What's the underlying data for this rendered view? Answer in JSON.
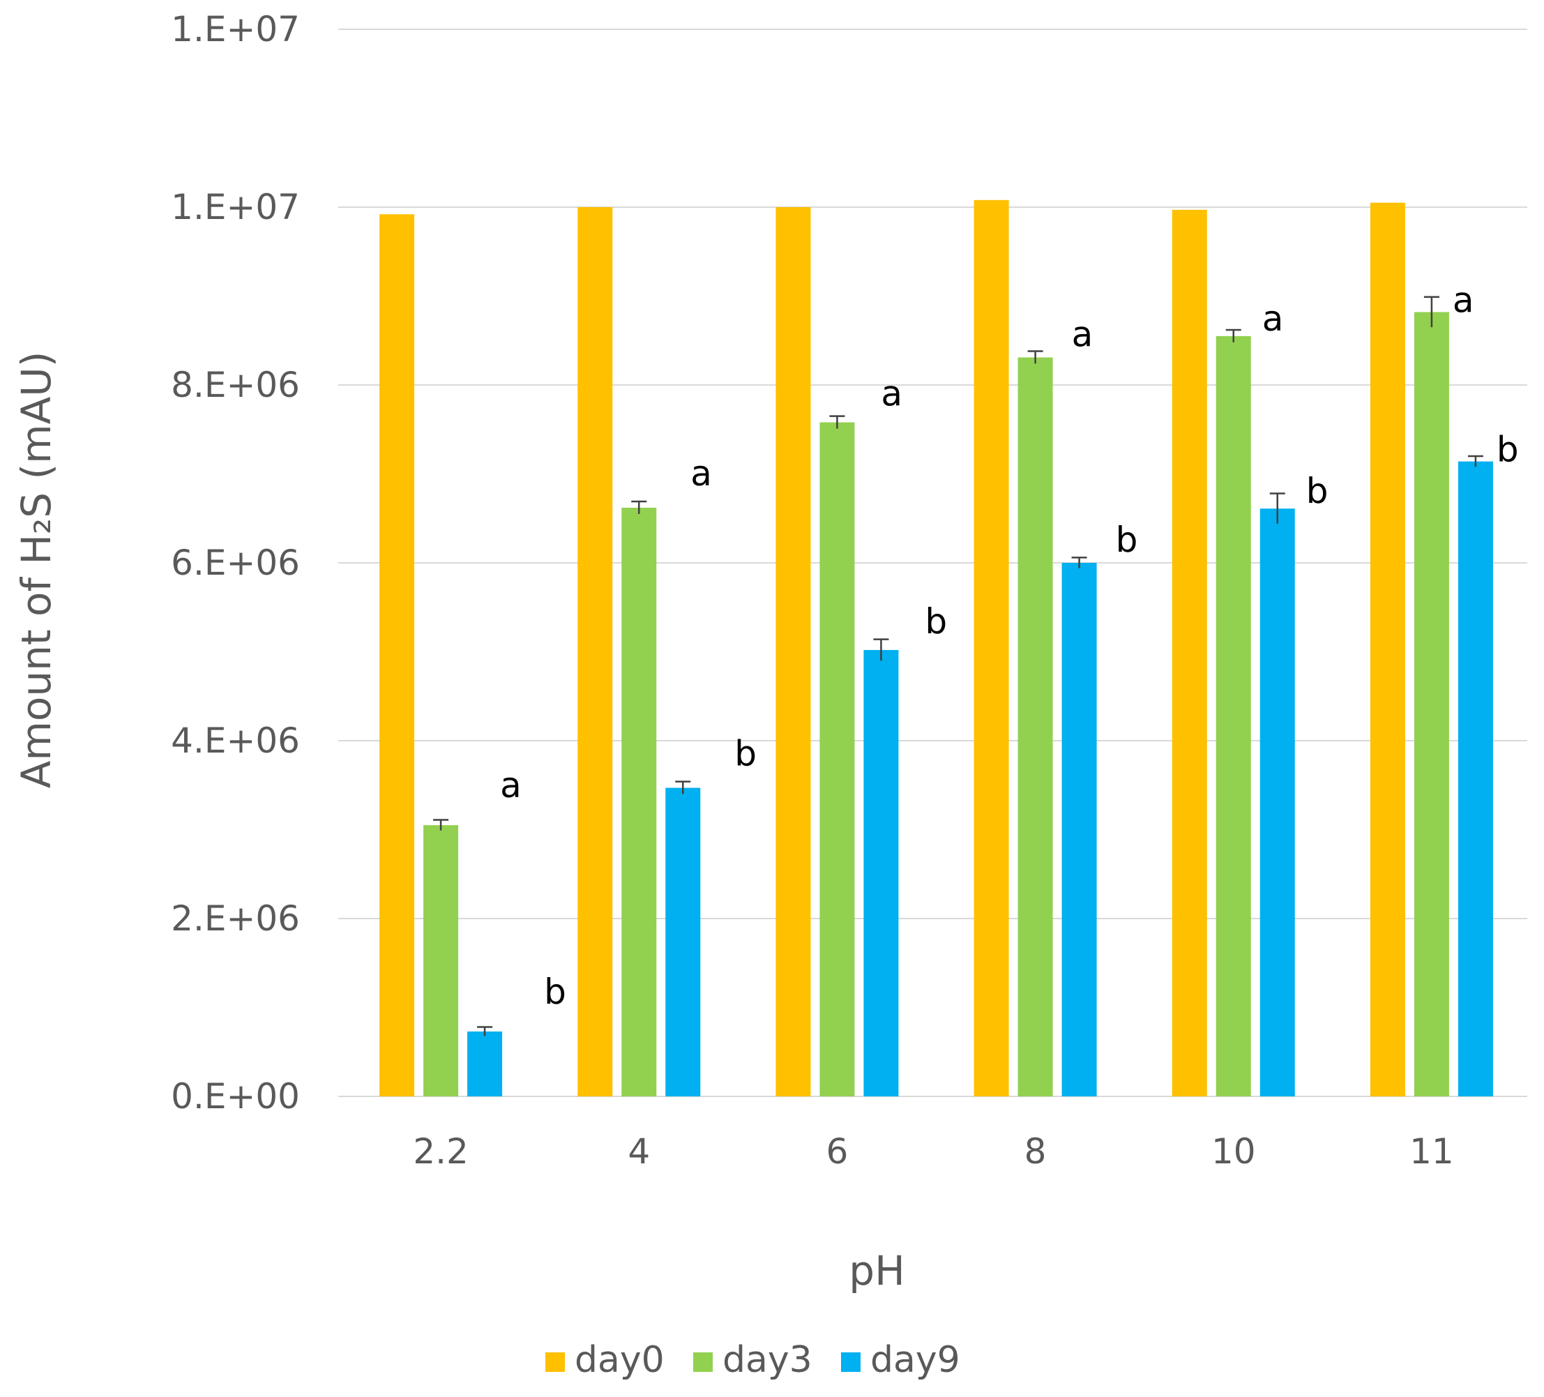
{
  "chart_data": {
    "type": "bar",
    "title": "",
    "xlabel": "pH",
    "ylabel": "Amount of H₂S (mAU)",
    "ylim": [
      0,
      12000000
    ],
    "ytick_values": [
      0,
      2000000,
      4000000,
      6000000,
      8000000,
      10000000,
      12000000
    ],
    "ytick_labels": [
      "0.E+00",
      "2.E+06",
      "4.E+06",
      "6.E+06",
      "8.E+06",
      "1.E+07",
      "1.E+07"
    ],
    "grid": true,
    "legend_position": "bottom",
    "categories": [
      "2.2",
      "4",
      "6",
      "8",
      "10",
      "11"
    ],
    "series": [
      {
        "name": "day0",
        "color": "#FFC000",
        "values": [
          9920000,
          10000000,
          10000000,
          10080000,
          9970000,
          10050000
        ],
        "errors": [
          0,
          0,
          0,
          0,
          0,
          0
        ],
        "labels": [
          "",
          "",
          "",
          "",
          "",
          ""
        ]
      },
      {
        "name": "day3",
        "color": "#92D050",
        "values": [
          3050000,
          6620000,
          7580000,
          8310000,
          8550000,
          8820000
        ],
        "errors": [
          60000,
          70000,
          70000,
          70000,
          70000,
          170000
        ],
        "labels": [
          "a",
          "a",
          "a",
          "a",
          "a",
          "a"
        ]
      },
      {
        "name": "day9",
        "color": "#00B0F0",
        "values": [
          730000,
          3470000,
          5020000,
          6000000,
          6610000,
          7140000
        ],
        "errors": [
          50000,
          70000,
          120000,
          60000,
          170000,
          60000
        ],
        "labels": [
          "b",
          "b",
          "b",
          "b",
          "b",
          "b"
        ]
      }
    ]
  }
}
